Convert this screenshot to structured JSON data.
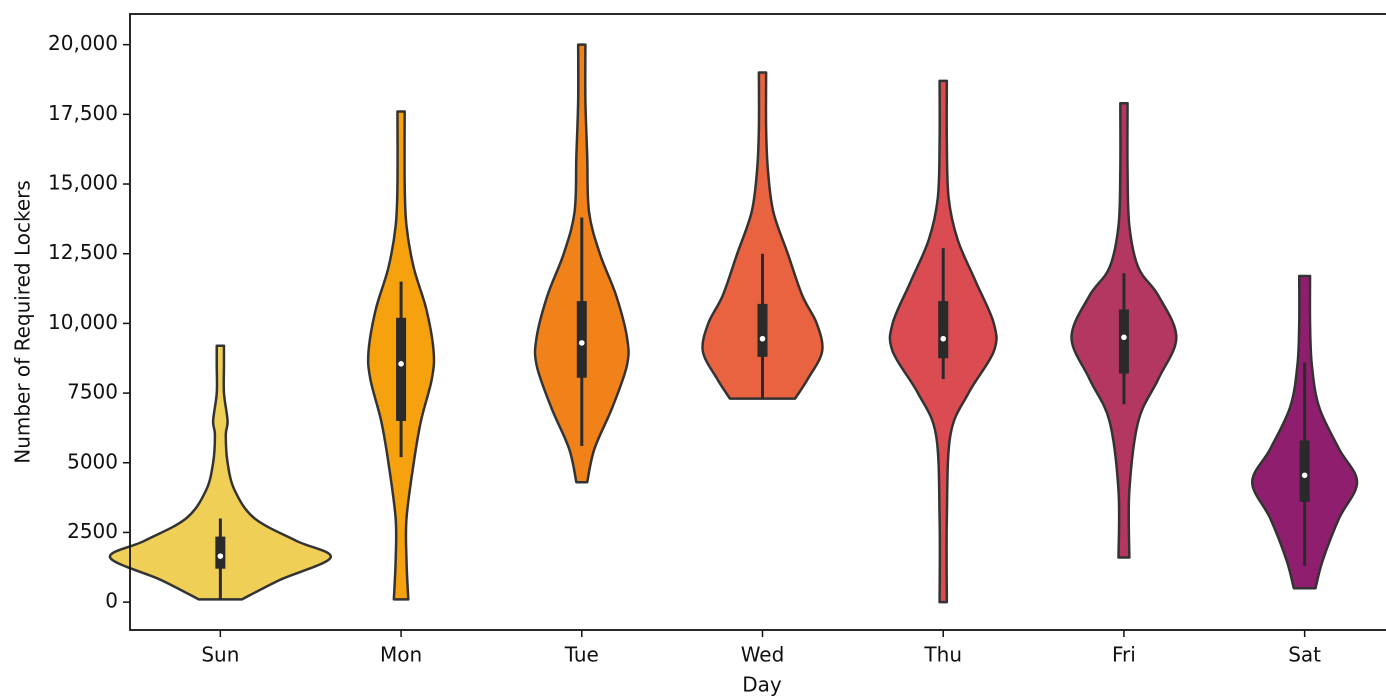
{
  "chart_data": {
    "type": "violin",
    "xlabel": "Day",
    "ylabel": "Number of Required Lockers",
    "categories": [
      "Sun",
      "Mon",
      "Tue",
      "Wed",
      "Thu",
      "Fri",
      "Sat"
    ],
    "colors": [
      "#f0cf57",
      "#f5a20e",
      "#f1821a",
      "#ea6340",
      "#db4b52",
      "#b33761",
      "#8f1f6e"
    ],
    "ylim": [
      -1000,
      21100
    ],
    "yticks": [
      0,
      2500,
      5000,
      7500,
      {
        "value": 10000,
        "label": "10,000"
      },
      {
        "value": 12500,
        "label": "12,500"
      },
      {
        "value": 15000,
        "label": "15,000"
      },
      {
        "value": 17500,
        "label": "17,500"
      },
      {
        "value": 20000,
        "label": "20,000"
      }
    ],
    "violins": [
      {
        "density_y": [
          100,
          800,
          1600,
          2200,
          3000,
          4000,
          5000,
          6000,
          6500,
          7500,
          8500,
          9200
        ],
        "density_width": [
          0.12,
          0.33,
          0.61,
          0.42,
          0.19,
          0.08,
          0.04,
          0.03,
          0.04,
          0.02,
          0.02,
          0.02
        ],
        "whisker_low": 100,
        "q1": 1200,
        "median": 1650,
        "q3": 2350,
        "whisker_high": 3000
      },
      {
        "density_y": [
          100,
          1500,
          3000,
          5000,
          6500,
          8000,
          9000,
          10500,
          12000,
          13500,
          15000,
          17600
        ],
        "density_width": [
          0.04,
          0.03,
          0.03,
          0.07,
          0.11,
          0.17,
          0.18,
          0.14,
          0.07,
          0.03,
          0.02,
          0.02
        ],
        "whisker_low": 5200,
        "q1": 6500,
        "median": 8550,
        "q3": 10200,
        "whisker_high": 11500
      },
      {
        "density_y": [
          4300,
          5500,
          7000,
          8500,
          9500,
          11000,
          12500,
          14000,
          16000,
          18000,
          20000
        ],
        "density_width": [
          0.03,
          0.07,
          0.17,
          0.25,
          0.25,
          0.19,
          0.1,
          0.04,
          0.03,
          0.02,
          0.02
        ],
        "whisker_low": 5600,
        "q1": 8050,
        "median": 9300,
        "q3": 10800,
        "whisker_high": 13800
      },
      {
        "density_y": [
          7300,
          8000,
          9000,
          10000,
          11000,
          12500,
          14000,
          15500,
          17000,
          19000
        ],
        "density_width": [
          0.18,
          0.25,
          0.33,
          0.3,
          0.22,
          0.14,
          0.06,
          0.03,
          0.02,
          0.02
        ],
        "whisker_low": 7300,
        "q1": 8800,
        "median": 9450,
        "q3": 10700,
        "whisker_high": 12500
      },
      {
        "density_y": [
          0,
          3000,
          6000,
          7500,
          9000,
          10000,
          11500,
          13000,
          14500,
          16500,
          18700
        ],
        "density_width": [
          0.02,
          0.02,
          0.04,
          0.14,
          0.28,
          0.28,
          0.18,
          0.08,
          0.03,
          0.02,
          0.02
        ],
        "whisker_low": 8000,
        "q1": 8750,
        "median": 9450,
        "q3": 10800,
        "whisker_high": 12700
      },
      {
        "density_y": [
          1600,
          4000,
          6500,
          8000,
          9500,
          11000,
          12000,
          13500,
          15500,
          17900
        ],
        "density_width": [
          0.03,
          0.03,
          0.08,
          0.19,
          0.29,
          0.19,
          0.08,
          0.03,
          0.02,
          0.02
        ],
        "whisker_low": 7100,
        "q1": 8200,
        "median": 9500,
        "q3": 10500,
        "whisker_high": 11800
      },
      {
        "density_y": [
          500,
          1500,
          3000,
          4300,
          5500,
          7000,
          8500,
          10000,
          11700
        ],
        "density_width": [
          0.06,
          0.1,
          0.19,
          0.29,
          0.19,
          0.08,
          0.04,
          0.03,
          0.03
        ],
        "whisker_low": 1300,
        "q1": 3600,
        "median": 4550,
        "q3": 5800,
        "whisker_high": 8600
      }
    ]
  }
}
